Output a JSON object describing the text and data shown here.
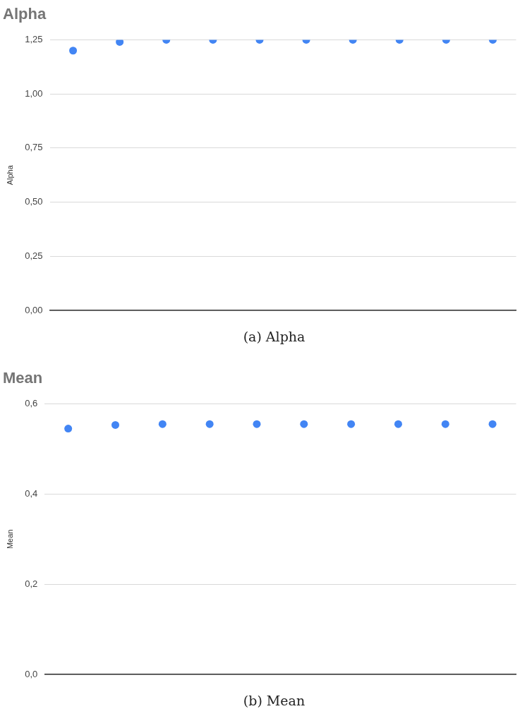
{
  "chart_data": [
    {
      "type": "scatter",
      "title": "Alpha",
      "ylabel": "Alpha",
      "categories": [
        null,
        null,
        null,
        null,
        null,
        null,
        null,
        null,
        null,
        null
      ],
      "series": [
        {
          "color": "#4285f4",
          "values": [
            1.2,
            1.24,
            1.25,
            1.25,
            1.25,
            1.25,
            1.25,
            1.25,
            1.25,
            1.25
          ]
        }
      ],
      "ylim": [
        0,
        1.25
      ],
      "yticks": [
        {
          "value": 0,
          "label": "0,00"
        },
        {
          "value": 0.25,
          "label": "0,25"
        },
        {
          "value": 0.5,
          "label": "0,50"
        },
        {
          "value": 0.75,
          "label": "0,75"
        },
        {
          "value": 1,
          "label": "1,00"
        },
        {
          "value": 1.25,
          "label": "1,25"
        }
      ],
      "grid": "y",
      "marker": "circle",
      "legend": false,
      "tick_labels": "y",
      "annotations": [
        "(a) Alpha"
      ]
    },
    {
      "type": "scatter",
      "title": "Mean",
      "ylabel": "Mean",
      "categories": [
        null,
        null,
        null,
        null,
        null,
        null,
        null,
        null,
        null,
        null
      ],
      "series": [
        {
          "color": "#4285f4",
          "values": [
            0.545,
            0.553,
            0.555,
            0.555,
            0.555,
            0.555,
            0.555,
            0.555,
            0.555,
            0.555
          ]
        }
      ],
      "ylim": [
        0,
        0.6
      ],
      "yticks": [
        {
          "value": 0,
          "label": "0,0"
        },
        {
          "value": 0.2,
          "label": "0,2"
        },
        {
          "value": 0.4,
          "label": "0,4"
        },
        {
          "value": 0.6,
          "label": "0,6"
        }
      ],
      "grid": "y",
      "marker": "circle",
      "legend": false,
      "tick_labels": "y",
      "annotations": [
        "(b) Mean"
      ]
    }
  ]
}
